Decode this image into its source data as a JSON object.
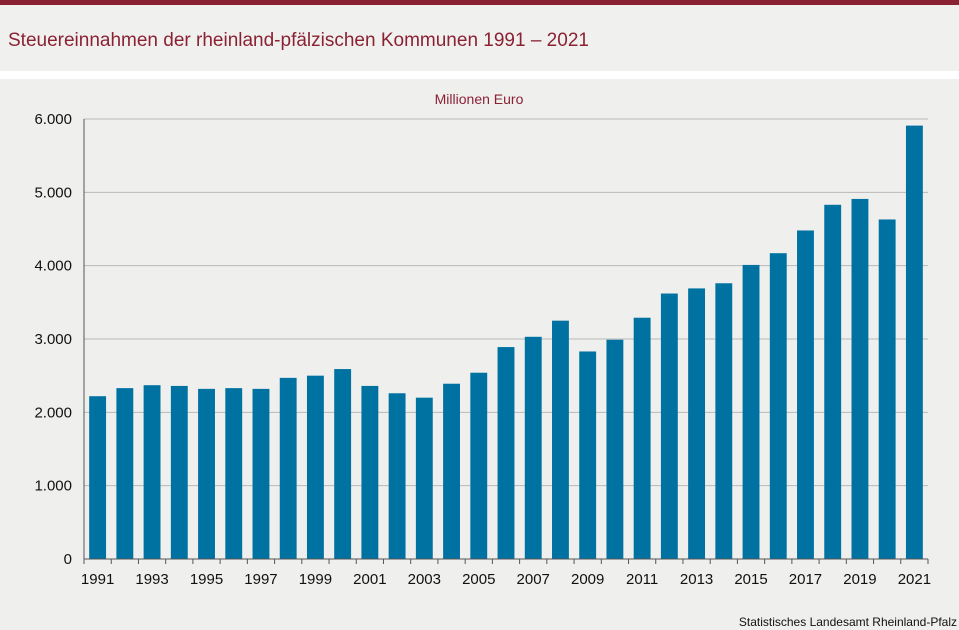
{
  "header": {
    "title": "Steuereinnahmen der rheinland-pfälzischen Kommunen 1991 – 2021"
  },
  "footer": {
    "source": "Statistisches Landesamt  Rheinland-Pfalz"
  },
  "colors": {
    "accent": "#8b2233",
    "bar": "#0072a2",
    "background": "#f0f0ef"
  },
  "chart_data": {
    "type": "bar",
    "title": "",
    "unit_label": "Millionen  Euro",
    "xlabel": "",
    "ylabel": "",
    "ylim": [
      0,
      6000
    ],
    "y_ticks": [
      0,
      1000,
      2000,
      3000,
      4000,
      5000,
      6000
    ],
    "y_tick_labels": [
      "0",
      "1.000",
      "2.000",
      "3.000",
      "4.000",
      "5.000",
      "6.000"
    ],
    "grid": true,
    "categories": [
      "1991",
      "1992",
      "1993",
      "1994",
      "1995",
      "1996",
      "1997",
      "1998",
      "1999",
      "2000",
      "2001",
      "2002",
      "2003",
      "2004",
      "2005",
      "2006",
      "2007",
      "2008",
      "2009",
      "2010",
      "2011",
      "2012",
      "2013",
      "2014",
      "2015",
      "2016",
      "2017",
      "2018",
      "2019",
      "2020",
      "2021"
    ],
    "x_tick_labels": [
      "1991",
      "",
      "1993",
      "",
      "1995",
      "",
      "1997",
      "",
      "1999",
      "",
      "2001",
      "",
      "2003",
      "",
      "2005",
      "",
      "2007",
      "",
      "2009",
      "",
      "2011",
      "",
      "2013",
      "",
      "2015",
      "",
      "2017",
      "",
      "2019",
      "",
      "2021"
    ],
    "values": [
      2220,
      2330,
      2370,
      2360,
      2320,
      2330,
      2320,
      2470,
      2500,
      2590,
      2360,
      2260,
      2200,
      2390,
      2540,
      2890,
      3030,
      3250,
      2830,
      2990,
      3290,
      3620,
      3690,
      3760,
      4010,
      4170,
      4480,
      4830,
      4910,
      4630,
      5910
    ]
  }
}
